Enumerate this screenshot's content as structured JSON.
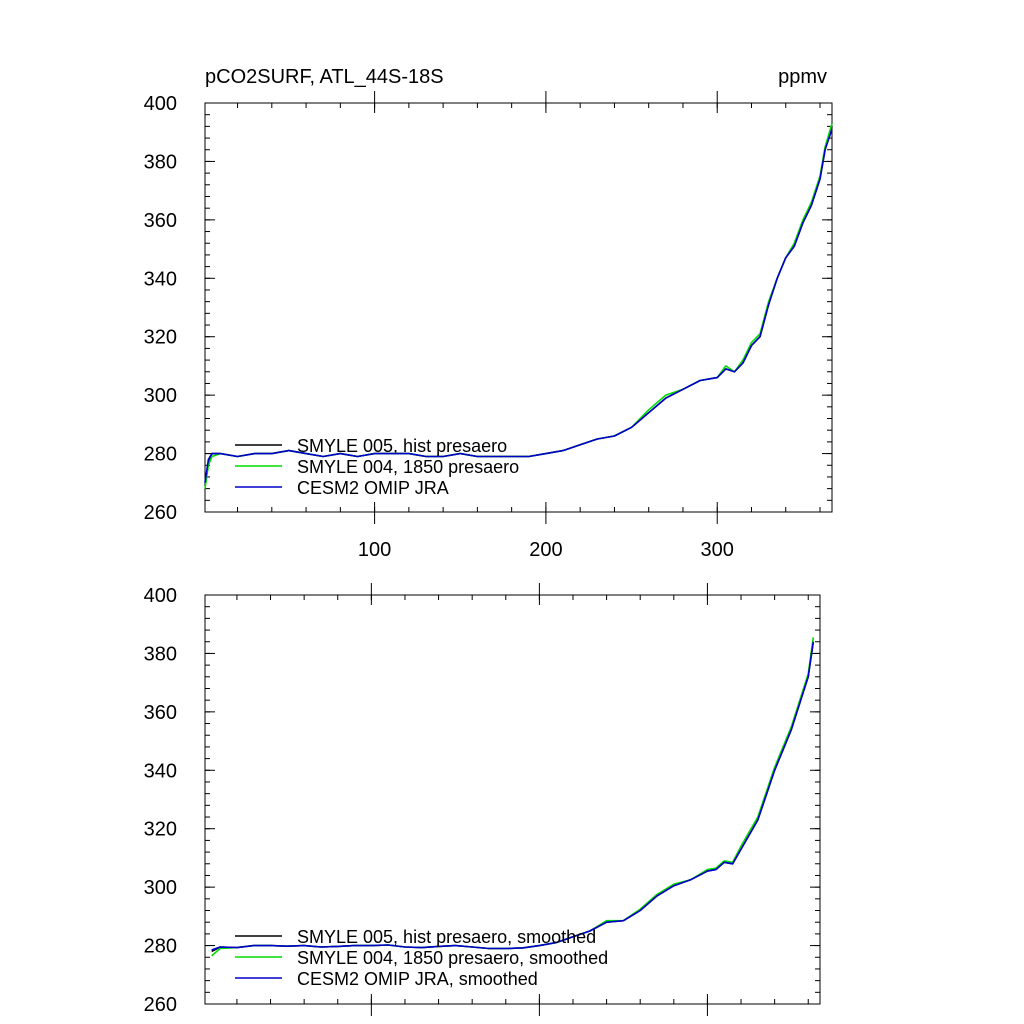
{
  "colors": {
    "hist": "#000000",
    "presaero1850": "#00dd00",
    "omip": "#0000cc"
  },
  "chart_data": [
    {
      "type": "line",
      "title_left": "pCO2SURF, ATL_44S-18S",
      "title_right": "ppmv",
      "xlabel": "",
      "ylabel": "",
      "xlim": [
        1,
        367
      ],
      "ylim": [
        260,
        400
      ],
      "xticks": [
        100,
        200,
        300
      ],
      "xtick_labels": [
        "100",
        "200",
        "300"
      ],
      "yticks": [
        260,
        280,
        300,
        320,
        340,
        360,
        380,
        400
      ],
      "ytick_labels": [
        "260",
        "280",
        "300",
        "320",
        "340",
        "360",
        "380",
        "400"
      ],
      "legend_position": "lower-left",
      "x": [
        1,
        3,
        5,
        10,
        20,
        30,
        40,
        50,
        60,
        70,
        80,
        90,
        100,
        110,
        120,
        130,
        140,
        150,
        160,
        170,
        180,
        190,
        200,
        210,
        220,
        230,
        240,
        250,
        260,
        270,
        280,
        290,
        300,
        305,
        310,
        315,
        320,
        325,
        330,
        335,
        340,
        345,
        350,
        355,
        360,
        363,
        367
      ],
      "series": [
        {
          "name": "SMYLE 005, hist presaero",
          "color_key": "hist",
          "values": [
            269,
            277,
            280,
            280,
            279,
            280,
            280,
            281,
            280,
            279,
            280,
            279,
            280,
            280,
            280,
            279,
            279,
            280,
            279,
            279,
            279,
            279,
            280,
            281,
            283,
            285,
            286,
            289,
            294,
            299,
            302,
            305,
            306,
            309,
            308,
            311,
            317,
            320,
            331,
            340,
            347,
            351,
            359,
            365,
            374,
            384,
            392
          ]
        },
        {
          "name": "SMYLE 004, 1850 presaero",
          "color_key": "presaero1850",
          "values": [
            268,
            276,
            279,
            280,
            279,
            280,
            280,
            281,
            280,
            279,
            280,
            279,
            280,
            280,
            280,
            279,
            279,
            280,
            279,
            279,
            279,
            279,
            280,
            281,
            283,
            285,
            286,
            289,
            295,
            300,
            302,
            305,
            306,
            310,
            308,
            312,
            318,
            321,
            332,
            340,
            347,
            352,
            360,
            366,
            375,
            385,
            393
          ]
        },
        {
          "name": "CESM2 OMIP JRA",
          "color_key": "omip",
          "values": [
            270,
            278,
            280,
            280,
            279,
            280,
            280,
            281,
            280,
            279,
            280,
            279,
            280,
            280,
            280,
            279,
            279,
            280,
            279,
            279,
            279,
            279,
            280,
            281,
            283,
            285,
            286,
            289,
            294,
            299,
            302,
            305,
            306,
            309,
            308,
            311,
            317,
            320,
            331,
            340,
            347,
            351,
            359,
            365,
            374,
            384,
            391
          ]
        }
      ]
    },
    {
      "type": "line",
      "title_left": "",
      "title_right": "",
      "xlabel": "",
      "ylabel": "",
      "xlim": [
        1,
        367
      ],
      "ylim": [
        260,
        400
      ],
      "xticks": [
        100,
        200,
        300
      ],
      "xtick_labels": [],
      "yticks": [
        260,
        280,
        300,
        320,
        340,
        360,
        380,
        400
      ],
      "ytick_labels": [
        "260",
        "280",
        "300",
        "320",
        "340",
        "360",
        "380",
        "400"
      ],
      "legend_position": "lower-left",
      "x": [
        5,
        10,
        20,
        30,
        40,
        50,
        60,
        70,
        80,
        90,
        100,
        110,
        120,
        130,
        140,
        150,
        160,
        170,
        180,
        190,
        200,
        210,
        220,
        230,
        240,
        250,
        260,
        270,
        280,
        290,
        300,
        305,
        310,
        315,
        320,
        330,
        340,
        350,
        360,
        363
      ],
      "series": [
        {
          "name": "SMYLE 005, hist presaero, smoothed",
          "color_key": "hist",
          "values": [
            278,
            279.5,
            279.3,
            280,
            280,
            279.8,
            280,
            279.5,
            279.7,
            280,
            280,
            280.2,
            279.5,
            279.3,
            279.7,
            280,
            279.5,
            279,
            279,
            279.2,
            280,
            281,
            283,
            285,
            288,
            288.5,
            292,
            297,
            300.5,
            302.5,
            305.5,
            306,
            308.5,
            308,
            313,
            323,
            340,
            354,
            372,
            384
          ]
        },
        {
          "name": "SMYLE 004, 1850 presaero, smoothed",
          "color_key": "presaero1850",
          "values": [
            276.5,
            279,
            279.3,
            280,
            280,
            279.8,
            280,
            279.5,
            279.7,
            280,
            280,
            280.2,
            279.5,
            279.3,
            279.7,
            280,
            279.5,
            279,
            279,
            279.2,
            280,
            281,
            283,
            285,
            288.5,
            288.5,
            292.5,
            297.5,
            301,
            302.5,
            306,
            306.5,
            309,
            308.5,
            314,
            324,
            341,
            355,
            373,
            385.5
          ]
        },
        {
          "name": "CESM2 OMIP JRA, smoothed",
          "color_key": "omip",
          "values": [
            278.5,
            279.5,
            279.3,
            280,
            280,
            279.8,
            280,
            279.5,
            279.7,
            280,
            280,
            280.2,
            279.5,
            279.3,
            279.7,
            280,
            279.5,
            279,
            279,
            279.2,
            280,
            281,
            283,
            285,
            288,
            288.5,
            292,
            297,
            300.5,
            302.5,
            305.5,
            306,
            308.5,
            308,
            313,
            323,
            340,
            354,
            372,
            384
          ]
        }
      ]
    }
  ]
}
